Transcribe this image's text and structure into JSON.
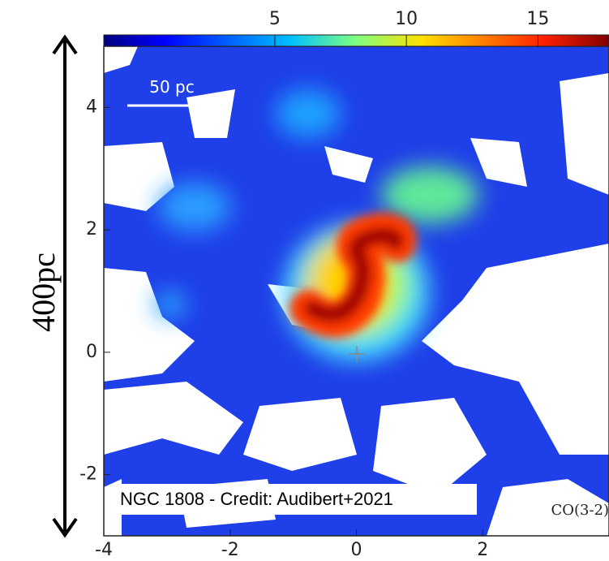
{
  "chart_data": {
    "type": "map",
    "side_label": "400pc",
    "scale_bar": "50 pc",
    "caption": "NGC 1808 - Credit: Audibert+2021",
    "tracer": "CO(3-2)",
    "xlim": [
      -4,
      4
    ],
    "xticks": [
      -4,
      -2,
      0,
      2
    ],
    "ylim": [
      -3,
      5
    ],
    "yticks": [
      -2,
      0,
      2,
      4
    ],
    "colorbar": {
      "lim": [
        -1.5,
        17.7
      ],
      "ticks": [
        5,
        10,
        15
      ]
    }
  }
}
